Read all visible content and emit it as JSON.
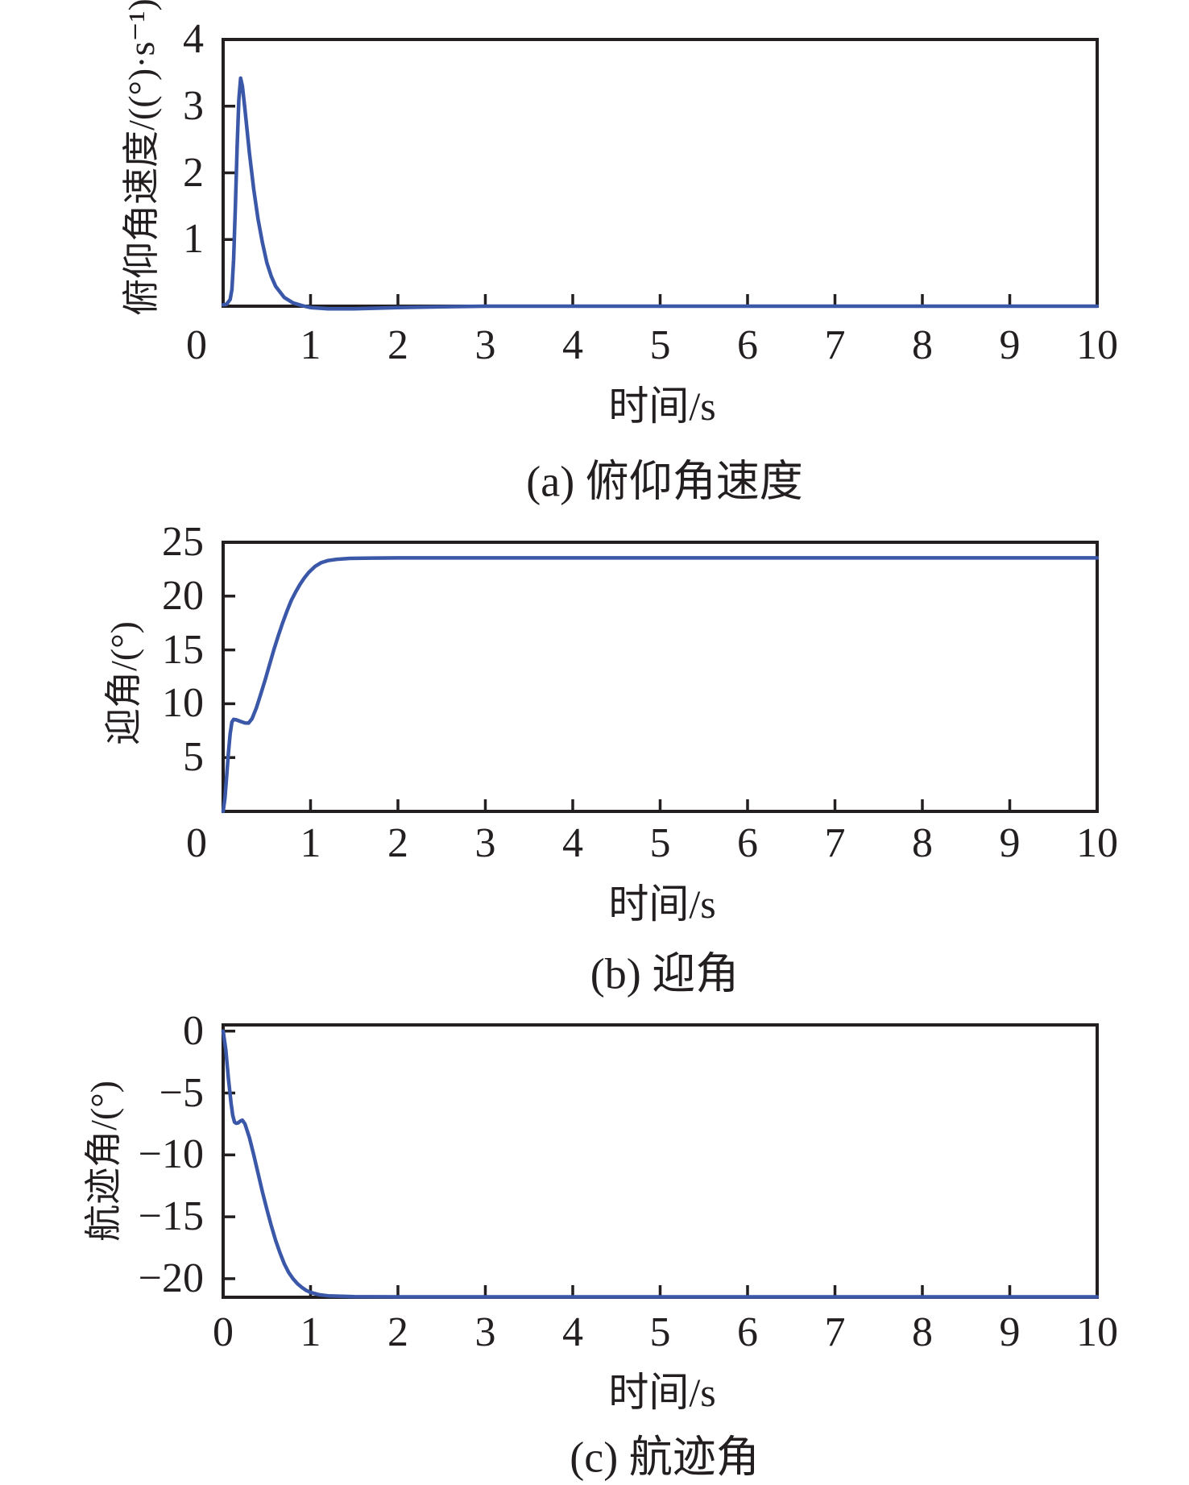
{
  "figure": {
    "background": "#ffffff",
    "line_color": "#3a57a8",
    "axis_color": "#231f20"
  },
  "chart_data": [
    {
      "id": "a",
      "type": "line",
      "caption": "(a) 俯仰角速度",
      "xlabel": "时间/s",
      "ylabel": "俯仰角速度/((°)·s⁻¹)",
      "xlim": [
        0,
        10
      ],
      "ylim": [
        0,
        4
      ],
      "xticks": [
        0,
        1,
        2,
        3,
        4,
        5,
        6,
        7,
        8,
        9,
        10
      ],
      "yticks": [
        1,
        2,
        3,
        4
      ],
      "legend": null,
      "grid": false,
      "series": [
        {
          "name": "俯仰角速度",
          "points": [
            [
              0,
              0.02
            ],
            [
              0.04,
              0.03
            ],
            [
              0.08,
              0.1
            ],
            [
              0.1,
              0.25
            ],
            [
              0.12,
              0.7
            ],
            [
              0.14,
              1.5
            ],
            [
              0.16,
              2.4
            ],
            [
              0.18,
              3.1
            ],
            [
              0.2,
              3.42
            ],
            [
              0.22,
              3.3
            ],
            [
              0.25,
              2.95
            ],
            [
              0.3,
              2.3
            ],
            [
              0.35,
              1.75
            ],
            [
              0.4,
              1.3
            ],
            [
              0.45,
              0.95
            ],
            [
              0.5,
              0.65
            ],
            [
              0.55,
              0.45
            ],
            [
              0.6,
              0.3
            ],
            [
              0.7,
              0.13
            ],
            [
              0.8,
              0.05
            ],
            [
              0.9,
              0.01
            ],
            [
              1.0,
              -0.02
            ],
            [
              1.2,
              -0.04
            ],
            [
              1.5,
              -0.04
            ],
            [
              2.0,
              -0.02
            ],
            [
              2.5,
              -0.01
            ],
            [
              3.0,
              0
            ],
            [
              4,
              0
            ],
            [
              5,
              0
            ],
            [
              6,
              0
            ],
            [
              7,
              0
            ],
            [
              8,
              0
            ],
            [
              9,
              0
            ],
            [
              10,
              0
            ]
          ]
        }
      ]
    },
    {
      "id": "b",
      "type": "line",
      "caption": "(b) 迎角",
      "xlabel": "时间/s",
      "ylabel": "迎角/(°)",
      "xlim": [
        0,
        10
      ],
      "ylim": [
        0,
        25
      ],
      "xticks": [
        0,
        1,
        2,
        3,
        4,
        5,
        6,
        7,
        8,
        9,
        10
      ],
      "yticks": [
        5,
        10,
        15,
        20,
        25
      ],
      "legend": null,
      "grid": false,
      "series": [
        {
          "name": "迎角",
          "points": [
            [
              0,
              0
            ],
            [
              0.02,
              1.2
            ],
            [
              0.04,
              3.2
            ],
            [
              0.06,
              5.4
            ],
            [
              0.08,
              7.2
            ],
            [
              0.1,
              8.3
            ],
            [
              0.12,
              8.55
            ],
            [
              0.15,
              8.5
            ],
            [
              0.2,
              8.35
            ],
            [
              0.25,
              8.22
            ],
            [
              0.29,
              8.2
            ],
            [
              0.33,
              8.6
            ],
            [
              0.38,
              9.6
            ],
            [
              0.43,
              10.9
            ],
            [
              0.48,
              12.2
            ],
            [
              0.53,
              13.6
            ],
            [
              0.58,
              15.0
            ],
            [
              0.63,
              16.3
            ],
            [
              0.68,
              17.5
            ],
            [
              0.73,
              18.6
            ],
            [
              0.78,
              19.6
            ],
            [
              0.83,
              20.4
            ],
            [
              0.88,
              21.1
            ],
            [
              0.93,
              21.7
            ],
            [
              0.98,
              22.2
            ],
            [
              1.05,
              22.75
            ],
            [
              1.12,
              23.1
            ],
            [
              1.2,
              23.3
            ],
            [
              1.3,
              23.42
            ],
            [
              1.45,
              23.5
            ],
            [
              1.7,
              23.53
            ],
            [
              2.0,
              23.55
            ],
            [
              3,
              23.55
            ],
            [
              4,
              23.55
            ],
            [
              5,
              23.55
            ],
            [
              6,
              23.55
            ],
            [
              7,
              23.55
            ],
            [
              8,
              23.55
            ],
            [
              9,
              23.55
            ],
            [
              10,
              23.55
            ]
          ]
        }
      ]
    },
    {
      "id": "c",
      "type": "line",
      "caption": "(c) 航迹角",
      "xlabel": "时间/s",
      "ylabel": "航迹角/(°)",
      "xlim": [
        0,
        10
      ],
      "ylim": [
        -21.5,
        0.5
      ],
      "xticks": [
        0,
        1,
        2,
        3,
        4,
        5,
        6,
        7,
        8,
        9,
        10
      ],
      "yticks": [
        0,
        -5,
        -10,
        -15,
        -20
      ],
      "legend": null,
      "grid": false,
      "series": [
        {
          "name": "航迹角",
          "points": [
            [
              0,
              0
            ],
            [
              0.03,
              -1.5
            ],
            [
              0.06,
              -3.8
            ],
            [
              0.09,
              -5.8
            ],
            [
              0.11,
              -6.8
            ],
            [
              0.13,
              -7.35
            ],
            [
              0.15,
              -7.45
            ],
            [
              0.17,
              -7.42
            ],
            [
              0.2,
              -7.25
            ],
            [
              0.22,
              -7.2
            ],
            [
              0.25,
              -7.5
            ],
            [
              0.3,
              -8.6
            ],
            [
              0.35,
              -10.0
            ],
            [
              0.4,
              -11.5
            ],
            [
              0.45,
              -13.0
            ],
            [
              0.5,
              -14.4
            ],
            [
              0.55,
              -15.7
            ],
            [
              0.6,
              -16.9
            ],
            [
              0.65,
              -17.9
            ],
            [
              0.7,
              -18.8
            ],
            [
              0.75,
              -19.5
            ],
            [
              0.8,
              -20.0
            ],
            [
              0.85,
              -20.4
            ],
            [
              0.9,
              -20.7
            ],
            [
              0.95,
              -20.95
            ],
            [
              1.0,
              -21.1
            ],
            [
              1.1,
              -21.3
            ],
            [
              1.2,
              -21.38
            ],
            [
              1.5,
              -21.45
            ],
            [
              2.0,
              -21.47
            ],
            [
              3,
              -21.47
            ],
            [
              4,
              -21.47
            ],
            [
              5,
              -21.47
            ],
            [
              6,
              -21.47
            ],
            [
              7,
              -21.47
            ],
            [
              8,
              -21.47
            ],
            [
              9,
              -21.47
            ],
            [
              10,
              -21.47
            ]
          ]
        }
      ]
    }
  ]
}
